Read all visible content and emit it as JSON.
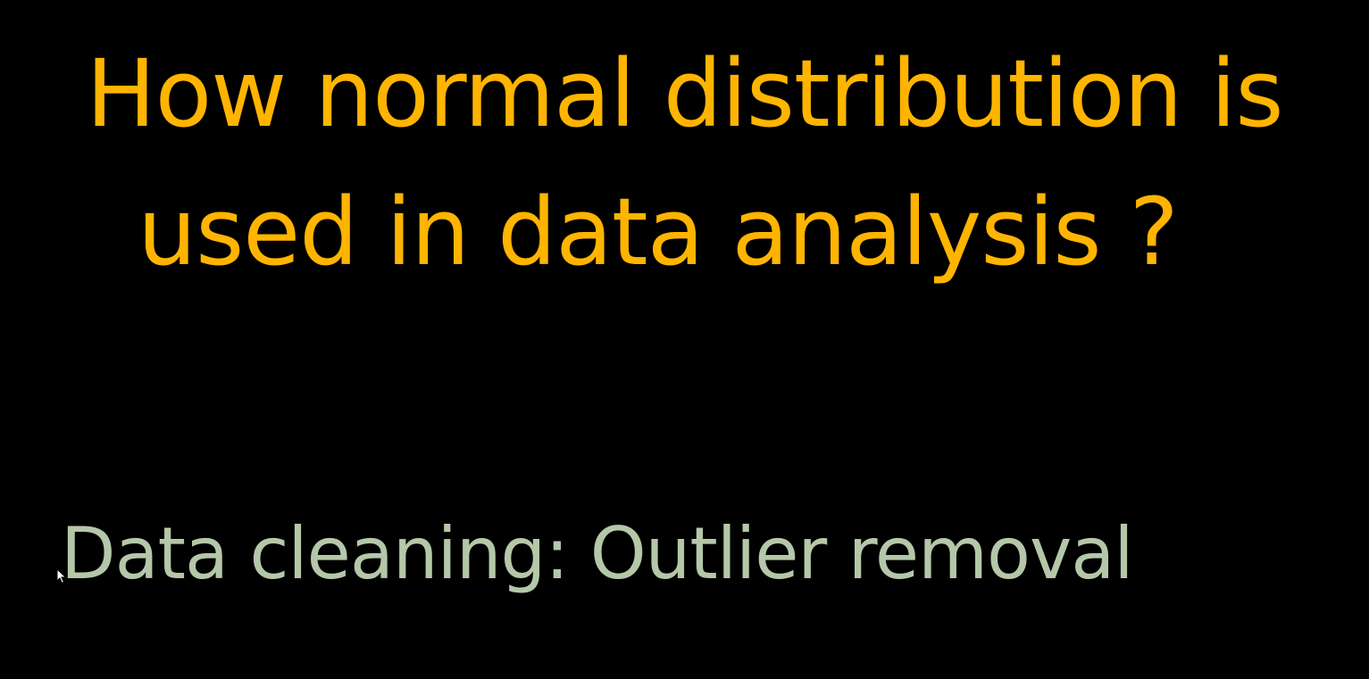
{
  "slide": {
    "title_line_1": "How normal distribution is",
    "title_line_2": "used in data analysis ?",
    "subtitle": "Data cleaning: Outlier removal"
  },
  "colors": {
    "background": "#000000",
    "title": "#FFB400",
    "subtitle": "#B5C7A9",
    "cursor": "#FFFFFF"
  },
  "icons": {
    "cursor": "mouse-pointer-icon"
  }
}
